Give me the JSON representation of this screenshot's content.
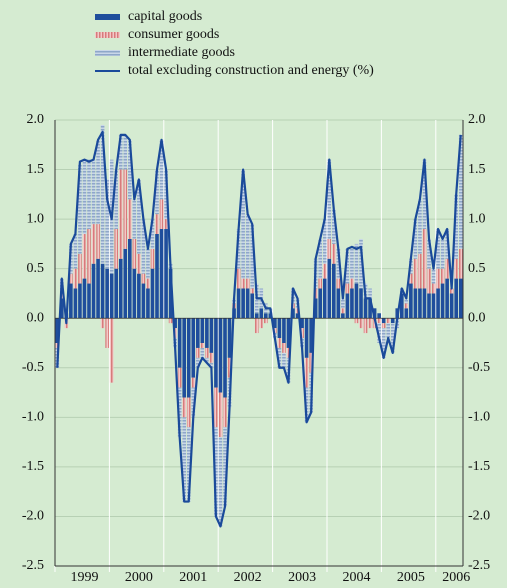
{
  "chart_data": {
    "type": "bar",
    "stacked": true,
    "categories": [
      null,
      null,
      null,
      null,
      null,
      null,
      "1999",
      null,
      null,
      null,
      null,
      null,
      null,
      null,
      null,
      null,
      null,
      null,
      "2000",
      null,
      null,
      null,
      null,
      null,
      null,
      null,
      null,
      null,
      null,
      null,
      "2001",
      null,
      null,
      null,
      null,
      null,
      null,
      null,
      null,
      null,
      null,
      null,
      "2002",
      null,
      null,
      null,
      null,
      null,
      null,
      null,
      null,
      null,
      null,
      null,
      "2003",
      null,
      null,
      null,
      null,
      null,
      null,
      null,
      null,
      null,
      null,
      null,
      "2004",
      null,
      null,
      null,
      null,
      null,
      null,
      null,
      null,
      null,
      null,
      null,
      "2005",
      null,
      null,
      null,
      null,
      null,
      null,
      null,
      null,
      null,
      "2006",
      null
    ],
    "series": [
      {
        "name": "capital goods",
        "color": "#1f4e9c",
        "values": [
          -0.25,
          0.2,
          0.05,
          0.35,
          0.3,
          0.35,
          0.4,
          0.35,
          0.55,
          0.6,
          0.55,
          0.5,
          0.45,
          0.5,
          0.6,
          0.7,
          0.8,
          0.5,
          0.45,
          0.35,
          0.3,
          0.5,
          0.85,
          0.9,
          0.9,
          0.5,
          -0.1,
          -0.5,
          -0.8,
          -0.8,
          -0.6,
          -0.3,
          -0.25,
          -0.3,
          -0.35,
          -0.7,
          -0.75,
          -0.8,
          -0.4,
          0.1,
          0.3,
          0.3,
          0.3,
          0.25,
          0.05,
          0.1,
          0.05,
          0.05,
          -0.1,
          -0.2,
          -0.25,
          -0.3,
          0.1,
          0.05,
          -0.1,
          -0.4,
          -0.35,
          0.2,
          0.3,
          0.4,
          0.6,
          0.55,
          0.3,
          0.05,
          0.25,
          0.3,
          0.35,
          0.3,
          0.2,
          0.2,
          0.1,
          0.05,
          -0.05,
          0,
          -0.05,
          0.1,
          0.25,
          0.1,
          0.35,
          0.3,
          0.3,
          0.3,
          0.25,
          0.25,
          0.3,
          0.35,
          0.4,
          0.25,
          0.4,
          0.4
        ]
      },
      {
        "name": "consumer goods",
        "color": "#e29a9a",
        "values": [
          -0.05,
          0.05,
          -0.1,
          0.1,
          0.2,
          0.3,
          0.45,
          0.55,
          0.4,
          0.35,
          -0.1,
          -0.3,
          -0.65,
          0.4,
          0.9,
          0.8,
          0.4,
          0.3,
          0.2,
          0.1,
          0.1,
          0.2,
          0.2,
          0.3,
          0.1,
          -0.05,
          -0.1,
          -0.2,
          -0.2,
          -0.3,
          -0.1,
          -0.1,
          -0.05,
          -0.1,
          -0.1,
          -0.4,
          -0.45,
          -0.3,
          -0.2,
          0.05,
          0.2,
          0.1,
          0.1,
          0.05,
          -0.15,
          -0.1,
          -0.05,
          0,
          -0.05,
          -0.1,
          -0.1,
          -0.1,
          0.05,
          0.05,
          -0.1,
          -0.3,
          -0.2,
          0.1,
          0.1,
          0.15,
          0.2,
          0.2,
          0.1,
          0.05,
          0.1,
          0.1,
          -0.05,
          -0.1,
          -0.15,
          -0.1,
          -0.1,
          -0.05,
          -0.05,
          -0.05,
          0,
          0,
          0,
          0.05,
          0.1,
          0.3,
          0.35,
          0.6,
          0.25,
          0.1,
          0.2,
          0.15,
          0.2,
          0.05,
          0.2,
          0.3
        ]
      },
      {
        "name": "intermediate goods",
        "color": "#a6bad6",
        "values": [
          -0.2,
          0.15,
          0,
          0.3,
          0.35,
          0.9,
          0.75,
          0.7,
          0.65,
          0.85,
          1.4,
          0.9,
          1.15,
          0.6,
          0.35,
          0.35,
          0.6,
          0.4,
          0.75,
          0.55,
          0.3,
          0.3,
          0.45,
          0.6,
          0.5,
          0.05,
          -0.1,
          -0.5,
          -0.85,
          -0.75,
          -0.3,
          -0.1,
          -0.1,
          -0.05,
          -0.05,
          -0.9,
          -0.9,
          -0.8,
          -0.3,
          0.05,
          0.4,
          1.1,
          0.65,
          0.65,
          0.3,
          0.2,
          0.1,
          0.05,
          -0.05,
          -0.2,
          -0.15,
          -0.25,
          0.15,
          0.1,
          -0.1,
          -0.35,
          -0.4,
          0.3,
          0.4,
          0.45,
          0.8,
          0.35,
          0.3,
          0.1,
          0.35,
          0.3,
          0.4,
          0.5,
          0.15,
          0.1,
          0,
          -0.2,
          -0.3,
          -0.15,
          -0.3,
          -0.1,
          0.05,
          0.05,
          0.15,
          0.4,
          0.55,
          0.7,
          0.3,
          0.15,
          0.4,
          0.3,
          0.3,
          0,
          0.65,
          1.15
        ]
      },
      {
        "name": "total excluding construction and energy (%)",
        "type": "line",
        "color": "#1a4a9a",
        "values": [
          -0.5,
          0.4,
          -0.05,
          0.75,
          0.85,
          1.58,
          1.6,
          1.58,
          1.6,
          1.8,
          1.88,
          1.2,
          1.0,
          1.5,
          1.85,
          1.85,
          1.8,
          1.2,
          1.4,
          1.0,
          0.7,
          1.0,
          1.5,
          1.8,
          1.5,
          0.5,
          -0.3,
          -1.2,
          -1.85,
          -1.85,
          -1.0,
          -0.5,
          -0.4,
          -0.45,
          -0.5,
          -2.0,
          -2.1,
          -1.9,
          -0.9,
          0.2,
          0.9,
          1.5,
          1.05,
          0.95,
          0.2,
          0.2,
          0.1,
          0.1,
          -0.2,
          -0.5,
          -0.5,
          -0.65,
          0.3,
          0.2,
          -0.3,
          -1.05,
          -0.95,
          0.6,
          0.8,
          1.0,
          1.6,
          1.1,
          0.7,
          0.2,
          0.7,
          0.72,
          0.7,
          0.72,
          0.2,
          0.2,
          0,
          -0.2,
          -0.4,
          -0.2,
          -0.35,
          0,
          0.3,
          0.2,
          0.6,
          1.0,
          1.2,
          1.6,
          0.8,
          0.5,
          0.9,
          0.8,
          0.9,
          0.3,
          1.25,
          1.85
        ]
      }
    ],
    "ylim": [
      -2.5,
      2.0
    ],
    "yticks": [
      {
        "value": 2,
        "label": "2.0"
      },
      1.5,
      {
        "value": 1,
        "label": "1.0"
      },
      0.5,
      {
        "value": 0,
        "label": "0.0"
      },
      -0.5,
      {
        "value": -1,
        "label": "-1.0"
      },
      -1.5,
      {
        "value": -2,
        "label": "-2.0"
      },
      -2.5
    ],
    "grid": true
  }
}
